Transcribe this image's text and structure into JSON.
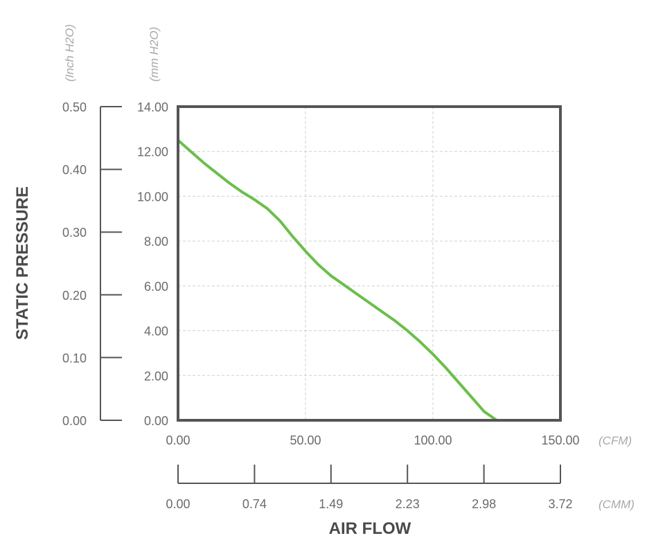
{
  "chart_data": {
    "type": "line",
    "ylabel": "STATIC PRESSURE",
    "xlabel": "AIR FLOW",
    "units": {
      "inch": "(Inch H2O)",
      "mm": "(mm H2O)",
      "cfm": "(CFM)",
      "cmm": "(CMM)"
    },
    "x_cfm_ticks": [
      "0.00",
      "50.00",
      "100.00",
      "150.00"
    ],
    "x_cmm_ticks": [
      "0.00",
      "0.74",
      "1.49",
      "2.23",
      "2.98",
      "3.72"
    ],
    "y_mm_ticks": [
      "0.00",
      "2.00",
      "4.00",
      "6.00",
      "8.00",
      "10.00",
      "12.00",
      "14.00"
    ],
    "y_inch_ticks": [
      "0.00",
      "0.10",
      "0.20",
      "0.30",
      "0.40",
      "0.50"
    ],
    "xlim": [
      0,
      150
    ],
    "ylim": [
      0,
      14
    ],
    "grid": true,
    "series": [
      {
        "color": "#6abf4b",
        "x": [
          0,
          5,
          10,
          15,
          20,
          25,
          30,
          35,
          40,
          45,
          50,
          55,
          60,
          65,
          70,
          75,
          80,
          85,
          90,
          95,
          100,
          105,
          110,
          115,
          120,
          125,
          130
        ],
        "y": [
          12.5,
          12.0,
          11.5,
          11.05,
          10.6,
          10.2,
          9.85,
          9.45,
          8.9,
          8.2,
          7.55,
          6.95,
          6.45,
          6.05,
          5.65,
          5.25,
          4.85,
          4.45,
          4.0,
          3.5,
          2.95,
          2.35,
          1.7,
          1.05,
          0.4,
          0.0,
          0.0
        ]
      }
    ]
  }
}
